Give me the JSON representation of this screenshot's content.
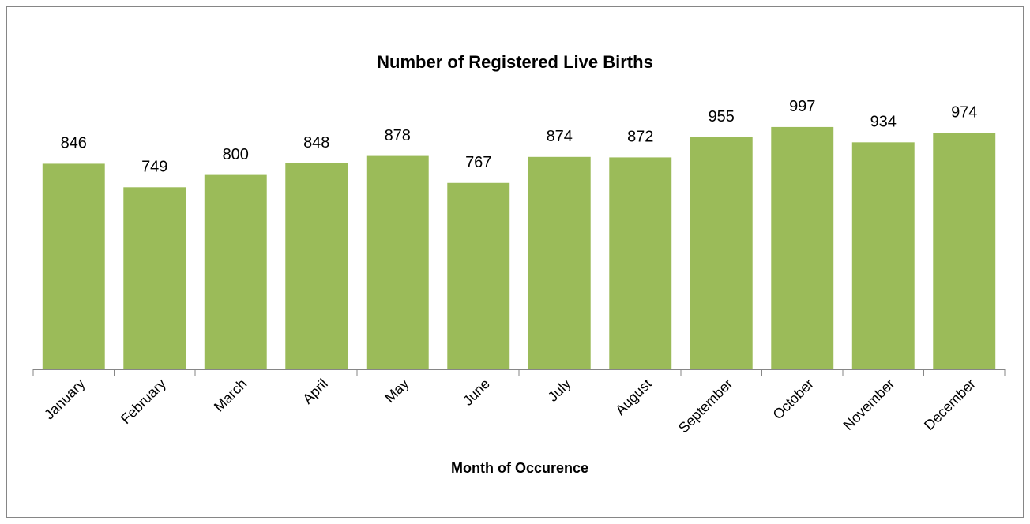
{
  "chart_data": {
    "type": "bar",
    "title": "Number of Registered Live Births",
    "x_label": "Month of Occurence",
    "categories": [
      "January",
      "February",
      "March",
      "April",
      "May",
      "June",
      "July",
      "August",
      "September",
      "October",
      "November",
      "December"
    ],
    "values": [
      846,
      749,
      800,
      848,
      878,
      767,
      874,
      872,
      955,
      997,
      934,
      974
    ],
    "color": "#9bbb59",
    "ylim": [
      0,
      1000
    ],
    "data_labels": true
  }
}
